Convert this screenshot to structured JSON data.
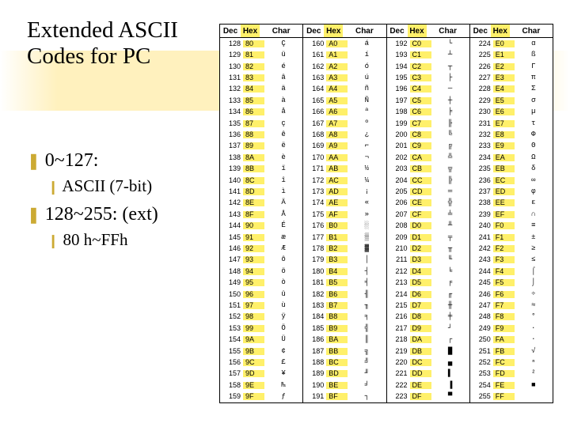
{
  "title": "Extended ASCII Codes for PC",
  "bullets": [
    {
      "level": 1,
      "marker": "❚",
      "text": "0~127:"
    },
    {
      "level": 2,
      "marker": "❙",
      "text": "ASCII (7-bit)"
    },
    {
      "level": 1,
      "marker": "❚",
      "text": "128~255: (ext)"
    },
    {
      "level": 2,
      "marker": "❙",
      "text": "80 h~FFh"
    }
  ],
  "stripe_positions_y": [
    64,
    102
  ],
  "stripe_left": 0,
  "stripe_width": 720,
  "stripe_color": "#ffdc3c",
  "table": {
    "headers": [
      "Dec",
      "Hex",
      "Char"
    ],
    "hex_col_bg": "#fff06a",
    "start": 128,
    "end": 255,
    "chars": [
      "Ç",
      "ü",
      "é",
      "â",
      "ä",
      "à",
      "å",
      "ç",
      "ê",
      "ë",
      "è",
      "ï",
      "î",
      "ì",
      "Ä",
      "Å",
      "É",
      "æ",
      "Æ",
      "ô",
      "ö",
      "ò",
      "û",
      "ù",
      "ÿ",
      "Ö",
      "Ü",
      "¢",
      "£",
      "¥",
      "₧",
      "ƒ",
      "á",
      "í",
      "ó",
      "ú",
      "ñ",
      "Ñ",
      "ª",
      "º",
      "¿",
      "⌐",
      "¬",
      "½",
      "¼",
      "¡",
      "«",
      "»",
      "░",
      "▒",
      "▓",
      "│",
      "┤",
      "╡",
      "╢",
      "╖",
      "╕",
      "╣",
      "║",
      "╗",
      "╝",
      "╜",
      "╛",
      "┐",
      "└",
      "┴",
      "┬",
      "├",
      "─",
      "┼",
      "╞",
      "╟",
      "╚",
      "╔",
      "╩",
      "╦",
      "╠",
      "═",
      "╬",
      "╧",
      "╨",
      "╤",
      "╥",
      "╙",
      "╘",
      "╒",
      "╓",
      "╫",
      "╪",
      "┘",
      "┌",
      "█",
      "▄",
      "▌",
      "▐",
      "▀",
      "α",
      "ß",
      "Γ",
      "π",
      "Σ",
      "σ",
      "µ",
      "τ",
      "Φ",
      "Θ",
      "Ω",
      "δ",
      "∞",
      "φ",
      "ε",
      "∩",
      "≡",
      "±",
      "≥",
      "≤",
      "⌠",
      "⌡",
      "÷",
      "≈",
      "°",
      "∙",
      "·",
      "√",
      "ⁿ",
      "²",
      "■",
      " "
    ]
  },
  "colors": {
    "title": "#000000",
    "text": "#000000",
    "bullet_marker": "#ccaa33",
    "background": "#ffffff"
  }
}
